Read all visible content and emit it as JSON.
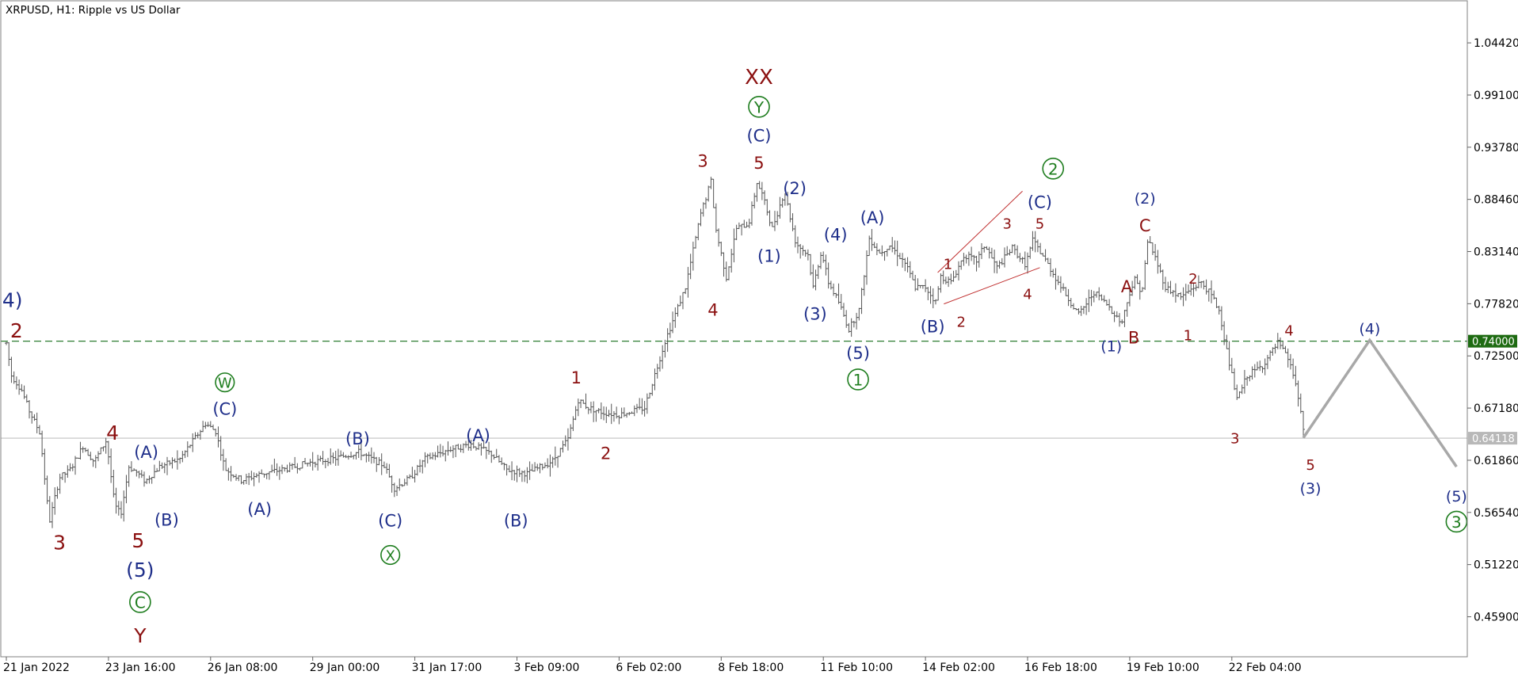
{
  "header": {
    "title": "XRPUSD, H1:  Ripple vs US Dollar"
  },
  "colors": {
    "background": "#ffffff",
    "frame": "#808080",
    "bars": "#555555",
    "level_line": "#2e7d32",
    "level_badge": "#1e6b12",
    "current_line": "#c0c0c0",
    "current_badge": "#b8b8b8",
    "projection": "#a8a8a8",
    "wave_navy": "#1f2f8a",
    "wave_maroon": "#8b1010",
    "wave_green": "#1e7d1e",
    "trendline": "#c03030"
  },
  "chart_data": {
    "type": "ohlc",
    "symbol": "XRPUSD",
    "timeframe": "H1",
    "title": "XRPUSD, H1:  Ripple vs US Dollar",
    "ylim": [
      0.4182,
      1.0871
    ],
    "y_ticks": [
      {
        "value": 1.0442,
        "label": "1.04420"
      },
      {
        "value": 0.991,
        "label": "0.99100"
      },
      {
        "value": 0.9378,
        "label": "0.93780"
      },
      {
        "value": 0.8846,
        "label": "0.88460"
      },
      {
        "value": 0.8314,
        "label": "0.83140"
      },
      {
        "value": 0.7782,
        "label": "0.77820"
      },
      {
        "value": 0.725,
        "label": "0.72500"
      },
      {
        "value": 0.6718,
        "label": "0.67180"
      },
      {
        "value": 0.6186,
        "label": "0.61860"
      },
      {
        "value": 0.5654,
        "label": "0.56540"
      },
      {
        "value": 0.5122,
        "label": "0.51220"
      },
      {
        "value": 0.459,
        "label": "0.45900"
      }
    ],
    "x_ticks": [
      {
        "t": 0,
        "label": "21 Jan 2022"
      },
      {
        "t": 1,
        "label": "23 Jan 16:00"
      },
      {
        "t": 2,
        "label": "26 Jan 08:00"
      },
      {
        "t": 3,
        "label": "29 Jan 00:00"
      },
      {
        "t": 4,
        "label": "31 Jan 17:00"
      },
      {
        "t": 5,
        "label": "3 Feb 09:00"
      },
      {
        "t": 6,
        "label": "6 Feb 02:00"
      },
      {
        "t": 7,
        "label": "8 Feb 18:00"
      },
      {
        "t": 8,
        "label": "11 Feb 10:00"
      },
      {
        "t": 9,
        "label": "14 Feb 02:00"
      },
      {
        "t": 10,
        "label": "16 Feb 18:00"
      },
      {
        "t": 11,
        "label": "19 Feb 10:00"
      },
      {
        "t": 12,
        "label": "22 Feb 04:00"
      }
    ],
    "price_path": [
      [
        0.0,
        0.738
      ],
      [
        0.05,
        0.705
      ],
      [
        0.15,
        0.69
      ],
      [
        0.22,
        0.67
      ],
      [
        0.33,
        0.646
      ],
      [
        0.42,
        0.555
      ],
      [
        0.52,
        0.601
      ],
      [
        0.62,
        0.608
      ],
      [
        0.75,
        0.633
      ],
      [
        0.86,
        0.617
      ],
      [
        0.98,
        0.639
      ],
      [
        1.06,
        0.573
      ],
      [
        1.12,
        0.563
      ],
      [
        1.2,
        0.612
      ],
      [
        1.27,
        0.607
      ],
      [
        1.36,
        0.597
      ],
      [
        1.5,
        0.612
      ],
      [
        1.7,
        0.62
      ],
      [
        1.95,
        0.656
      ],
      [
        2.05,
        0.648
      ],
      [
        2.14,
        0.61
      ],
      [
        2.3,
        0.598
      ],
      [
        2.5,
        0.605
      ],
      [
        2.75,
        0.61
      ],
      [
        3.0,
        0.617
      ],
      [
        3.2,
        0.62
      ],
      [
        3.45,
        0.627
      ],
      [
        3.7,
        0.613
      ],
      [
        3.8,
        0.59
      ],
      [
        3.95,
        0.6
      ],
      [
        4.1,
        0.62
      ],
      [
        4.35,
        0.63
      ],
      [
        4.55,
        0.635
      ],
      [
        4.75,
        0.625
      ],
      [
        4.9,
        0.609
      ],
      [
        5.1,
        0.605
      ],
      [
        5.35,
        0.618
      ],
      [
        5.5,
        0.64
      ],
      [
        5.6,
        0.68
      ],
      [
        5.7,
        0.672
      ],
      [
        5.85,
        0.667
      ],
      [
        6.0,
        0.665
      ],
      [
        6.25,
        0.672
      ],
      [
        6.45,
        0.74
      ],
      [
        6.65,
        0.795
      ],
      [
        6.8,
        0.87
      ],
      [
        6.9,
        0.903
      ],
      [
        6.95,
        0.853
      ],
      [
        7.05,
        0.805
      ],
      [
        7.15,
        0.855
      ],
      [
        7.27,
        0.86
      ],
      [
        7.35,
        0.902
      ],
      [
        7.4,
        0.89
      ],
      [
        7.5,
        0.855
      ],
      [
        7.62,
        0.893
      ],
      [
        7.73,
        0.84
      ],
      [
        7.85,
        0.828
      ],
      [
        7.9,
        0.795
      ],
      [
        7.98,
        0.832
      ],
      [
        8.05,
        0.8
      ],
      [
        8.15,
        0.78
      ],
      [
        8.25,
        0.752
      ],
      [
        8.35,
        0.772
      ],
      [
        8.45,
        0.845
      ],
      [
        8.55,
        0.83
      ],
      [
        8.65,
        0.838
      ],
      [
        8.8,
        0.82
      ],
      [
        8.9,
        0.795
      ],
      [
        9.0,
        0.795
      ],
      [
        9.1,
        0.78
      ],
      [
        9.15,
        0.806
      ],
      [
        9.25,
        0.8
      ],
      [
        9.38,
        0.828
      ],
      [
        9.5,
        0.822
      ],
      [
        9.58,
        0.838
      ],
      [
        9.7,
        0.815
      ],
      [
        9.85,
        0.835
      ],
      [
        9.98,
        0.818
      ],
      [
        10.05,
        0.843
      ],
      [
        10.15,
        0.827
      ],
      [
        10.3,
        0.8
      ],
      [
        10.42,
        0.78
      ],
      [
        10.5,
        0.767
      ],
      [
        10.65,
        0.79
      ],
      [
        10.8,
        0.775
      ],
      [
        10.92,
        0.758
      ],
      [
        11.0,
        0.79
      ],
      [
        11.05,
        0.803
      ],
      [
        11.12,
        0.79
      ],
      [
        11.18,
        0.845
      ],
      [
        11.25,
        0.825
      ],
      [
        11.35,
        0.795
      ],
      [
        11.5,
        0.785
      ],
      [
        11.6,
        0.793
      ],
      [
        11.7,
        0.8
      ],
      [
        11.8,
        0.787
      ],
      [
        11.88,
        0.77
      ],
      [
        11.95,
        0.73
      ],
      [
        12.05,
        0.68
      ],
      [
        12.15,
        0.705
      ],
      [
        12.3,
        0.715
      ],
      [
        12.45,
        0.738
      ],
      [
        12.55,
        0.722
      ],
      [
        12.62,
        0.7
      ],
      [
        12.7,
        0.65
      ]
    ],
    "resistance_level": {
      "value": 0.74,
      "label": "0.74000"
    },
    "current_price": {
      "value": 0.6411,
      "label": "0.64118"
    },
    "projection": [
      [
        12.7,
        0.6415
      ],
      [
        13.35,
        0.741
      ],
      [
        14.2,
        0.612
      ]
    ],
    "trendlines": [
      [
        [
          9.12,
          0.81
        ],
        [
          9.95,
          0.893
        ]
      ],
      [
        [
          9.18,
          0.778
        ],
        [
          10.12,
          0.815
        ]
      ]
    ]
  },
  "wave_labels": [
    {
      "text": "4)",
      "t": -0.04,
      "v": 0.782,
      "color": "navy",
      "size": 25,
      "align": "left"
    },
    {
      "text": "2",
      "t": 0.1,
      "v": 0.751,
      "color": "maroon",
      "size": 25
    },
    {
      "text": "3",
      "t": 0.52,
      "v": 0.535,
      "color": "maroon",
      "size": 25
    },
    {
      "text": "4",
      "t": 1.04,
      "v": 0.647,
      "color": "maroon",
      "size": 25
    },
    {
      "text": "5",
      "t": 1.29,
      "v": 0.537,
      "color": "maroon",
      "size": 25
    },
    {
      "text": "(5)",
      "t": 1.31,
      "v": 0.507,
      "color": "navy",
      "size": 25
    },
    {
      "text": "C",
      "t": 1.31,
      "v": 0.474,
      "color": "green",
      "size": 21,
      "circle": true
    },
    {
      "text": "Y",
      "t": 1.31,
      "v": 0.44,
      "color": "maroon",
      "size": 25
    },
    {
      "text": "(A)",
      "t": 1.37,
      "v": 0.627,
      "color": "navy",
      "size": 21
    },
    {
      "text": "(B)",
      "t": 1.57,
      "v": 0.558,
      "color": "navy",
      "size": 21
    },
    {
      "text": "W",
      "t": 2.14,
      "v": 0.698,
      "color": "green",
      "size": 19,
      "circle": true
    },
    {
      "text": "(C)",
      "t": 2.14,
      "v": 0.671,
      "color": "navy",
      "size": 21
    },
    {
      "text": "(A)",
      "t": 2.48,
      "v": 0.569,
      "color": "navy",
      "size": 21
    },
    {
      "text": "(B)",
      "t": 3.44,
      "v": 0.641,
      "color": "navy",
      "size": 21
    },
    {
      "text": "(C)",
      "t": 3.76,
      "v": 0.557,
      "color": "navy",
      "size": 21
    },
    {
      "text": "X",
      "t": 3.76,
      "v": 0.522,
      "color": "green",
      "size": 19,
      "circle": true
    },
    {
      "text": "(A)",
      "t": 4.62,
      "v": 0.644,
      "color": "navy",
      "size": 21
    },
    {
      "text": "(B)",
      "t": 4.99,
      "v": 0.557,
      "color": "navy",
      "size": 21
    },
    {
      "text": "1",
      "t": 5.58,
      "v": 0.703,
      "color": "maroon",
      "size": 21
    },
    {
      "text": "2",
      "t": 5.87,
      "v": 0.626,
      "color": "maroon",
      "size": 21
    },
    {
      "text": "3",
      "t": 6.82,
      "v": 0.924,
      "color": "maroon",
      "size": 21
    },
    {
      "text": "4",
      "t": 6.92,
      "v": 0.772,
      "color": "maroon",
      "size": 21
    },
    {
      "text": "5",
      "t": 7.37,
      "v": 0.922,
      "color": "maroon",
      "size": 21
    },
    {
      "text": "(C)",
      "t": 7.37,
      "v": 0.95,
      "color": "navy",
      "size": 21
    },
    {
      "text": "Y",
      "t": 7.37,
      "v": 0.979,
      "color": "green",
      "size": 21,
      "circle": true
    },
    {
      "text": "XX",
      "t": 7.37,
      "v": 1.01,
      "color": "maroon",
      "size": 26
    },
    {
      "text": "(2)",
      "t": 7.72,
      "v": 0.896,
      "color": "navy",
      "size": 21
    },
    {
      "text": "(1)",
      "t": 7.47,
      "v": 0.827,
      "color": "navy",
      "size": 21
    },
    {
      "text": "(4)",
      "t": 8.12,
      "v": 0.849,
      "color": "navy",
      "size": 21
    },
    {
      "text": "(3)",
      "t": 7.92,
      "v": 0.768,
      "color": "navy",
      "size": 21
    },
    {
      "text": "(A)",
      "t": 8.48,
      "v": 0.866,
      "color": "navy",
      "size": 21
    },
    {
      "text": "(5)",
      "t": 8.34,
      "v": 0.728,
      "color": "navy",
      "size": 21
    },
    {
      "text": "1",
      "t": 8.34,
      "v": 0.701,
      "color": "green",
      "size": 21,
      "circle": true
    },
    {
      "text": "(B)",
      "t": 9.07,
      "v": 0.755,
      "color": "navy",
      "size": 21
    },
    {
      "text": "1",
      "t": 9.22,
      "v": 0.819,
      "color": "maroon",
      "size": 18
    },
    {
      "text": "2",
      "t": 9.35,
      "v": 0.76,
      "color": "maroon",
      "size": 18
    },
    {
      "text": "3",
      "t": 9.8,
      "v": 0.86,
      "color": "maroon",
      "size": 18
    },
    {
      "text": "4",
      "t": 10.0,
      "v": 0.788,
      "color": "maroon",
      "size": 18
    },
    {
      "text": "5",
      "t": 10.12,
      "v": 0.86,
      "color": "maroon",
      "size": 18
    },
    {
      "text": "(C)",
      "t": 10.12,
      "v": 0.882,
      "color": "navy",
      "size": 21
    },
    {
      "text": "2",
      "t": 10.25,
      "v": 0.916,
      "color": "green",
      "size": 21,
      "circle": true
    },
    {
      "text": "(1)",
      "t": 10.82,
      "v": 0.735,
      "color": "navy",
      "size": 19
    },
    {
      "text": "A",
      "t": 10.97,
      "v": 0.796,
      "color": "maroon",
      "size": 21
    },
    {
      "text": "B",
      "t": 11.04,
      "v": 0.744,
      "color": "maroon",
      "size": 21
    },
    {
      "text": "(2)",
      "t": 11.15,
      "v": 0.886,
      "color": "navy",
      "size": 19
    },
    {
      "text": "C",
      "t": 11.15,
      "v": 0.858,
      "color": "maroon",
      "size": 21
    },
    {
      "text": "2",
      "t": 11.62,
      "v": 0.804,
      "color": "maroon",
      "size": 18
    },
    {
      "text": "1",
      "t": 11.57,
      "v": 0.746,
      "color": "maroon",
      "size": 18
    },
    {
      "text": "3",
      "t": 12.03,
      "v": 0.641,
      "color": "maroon",
      "size": 18
    },
    {
      "text": "4",
      "t": 12.56,
      "v": 0.751,
      "color": "maroon",
      "size": 18
    },
    {
      "text": "5",
      "t": 12.77,
      "v": 0.614,
      "color": "maroon",
      "size": 18
    },
    {
      "text": "(3)",
      "t": 12.77,
      "v": 0.59,
      "color": "navy",
      "size": 19
    },
    {
      "text": "(4)",
      "t": 13.35,
      "v": 0.753,
      "color": "navy",
      "size": 19
    },
    {
      "text": "(5)",
      "t": 14.2,
      "v": 0.582,
      "color": "navy",
      "size": 19
    },
    {
      "text": "3",
      "t": 14.2,
      "v": 0.556,
      "color": "green",
      "size": 21,
      "circle": true
    }
  ]
}
